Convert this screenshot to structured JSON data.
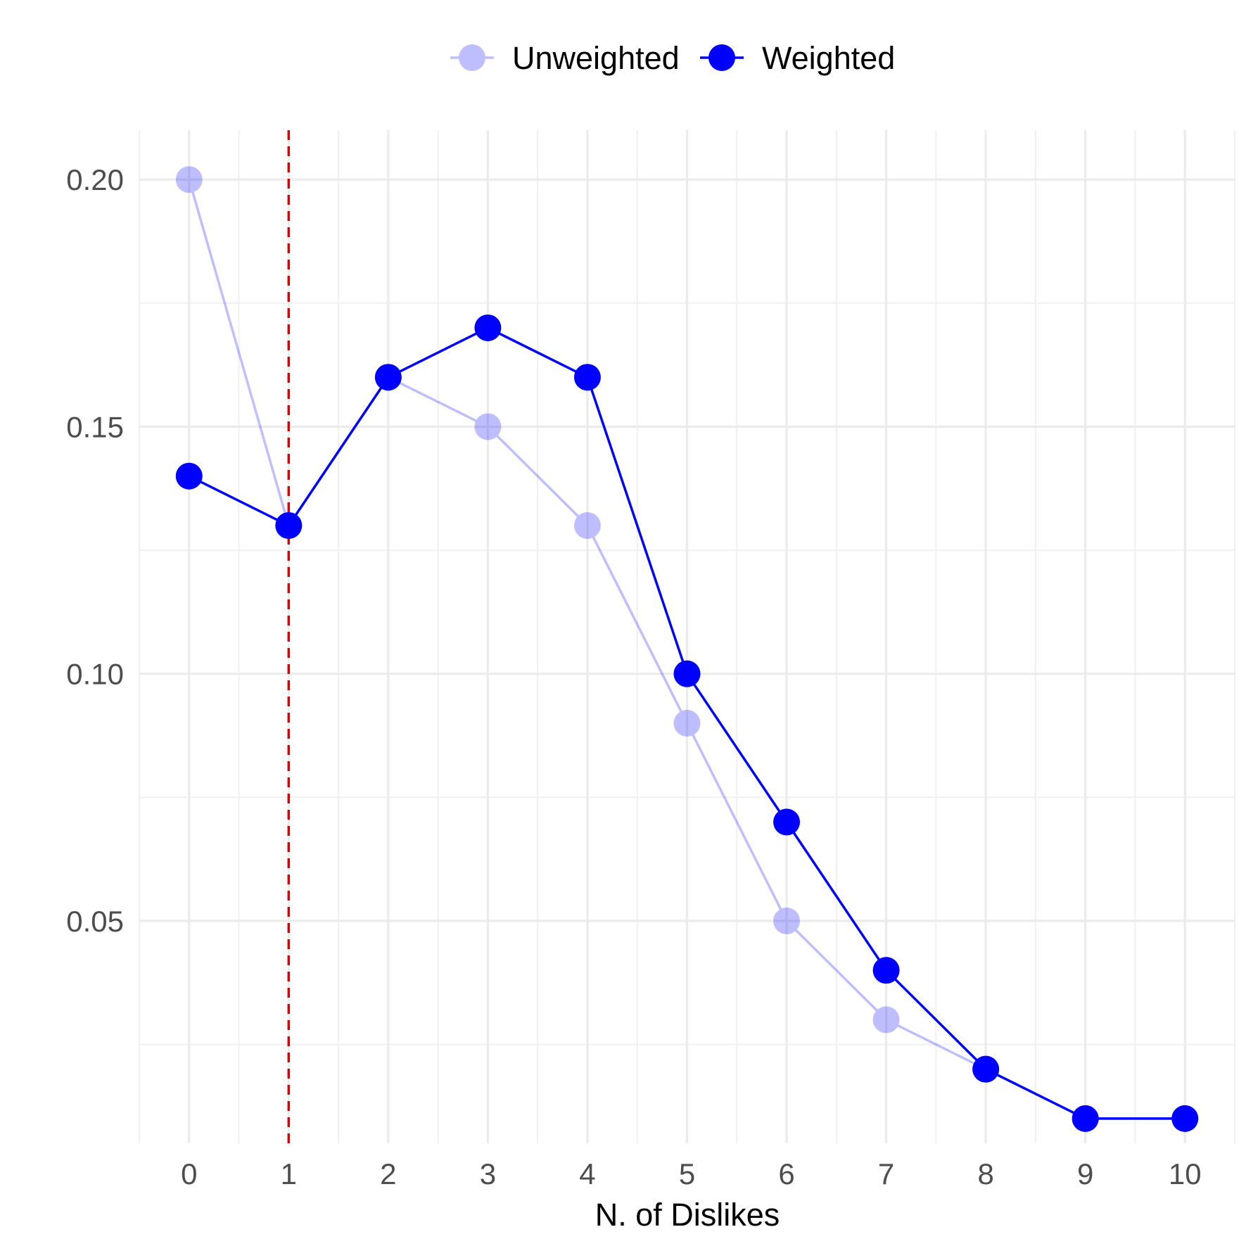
{
  "chart_data": {
    "type": "line",
    "title": "",
    "xlabel": "N. of Dislikes",
    "ylabel": "",
    "x": [
      0,
      1,
      2,
      3,
      4,
      5,
      6,
      7,
      8,
      9,
      10
    ],
    "x_tick_labels": [
      "0",
      "1",
      "2",
      "3",
      "4",
      "5",
      "6",
      "7",
      "8",
      "9",
      "10"
    ],
    "y_tick_values": [
      0.05,
      0.1,
      0.15,
      0.2
    ],
    "y_tick_labels": [
      "0.05",
      "0.10",
      "0.15",
      "0.20"
    ],
    "xlim": [
      -0.5,
      10.5
    ],
    "ylim": [
      0.005,
      0.21
    ],
    "grid": true,
    "legend_position": "top",
    "reference_line": {
      "axis": "x",
      "value": 1,
      "style": "dashed",
      "color": "#e00000"
    },
    "series": [
      {
        "name": "Unweighted",
        "color": "#0000ff",
        "opacity": 0.25,
        "values": [
          0.2,
          0.13,
          0.16,
          0.15,
          0.13,
          0.09,
          0.05,
          0.03,
          0.02,
          0.01,
          0.01
        ]
      },
      {
        "name": "Weighted",
        "color": "#0000ff",
        "opacity": 1.0,
        "values": [
          0.14,
          0.13,
          0.16,
          0.17,
          0.16,
          0.1,
          0.07,
          0.04,
          0.02,
          0.01,
          0.01
        ]
      }
    ]
  }
}
